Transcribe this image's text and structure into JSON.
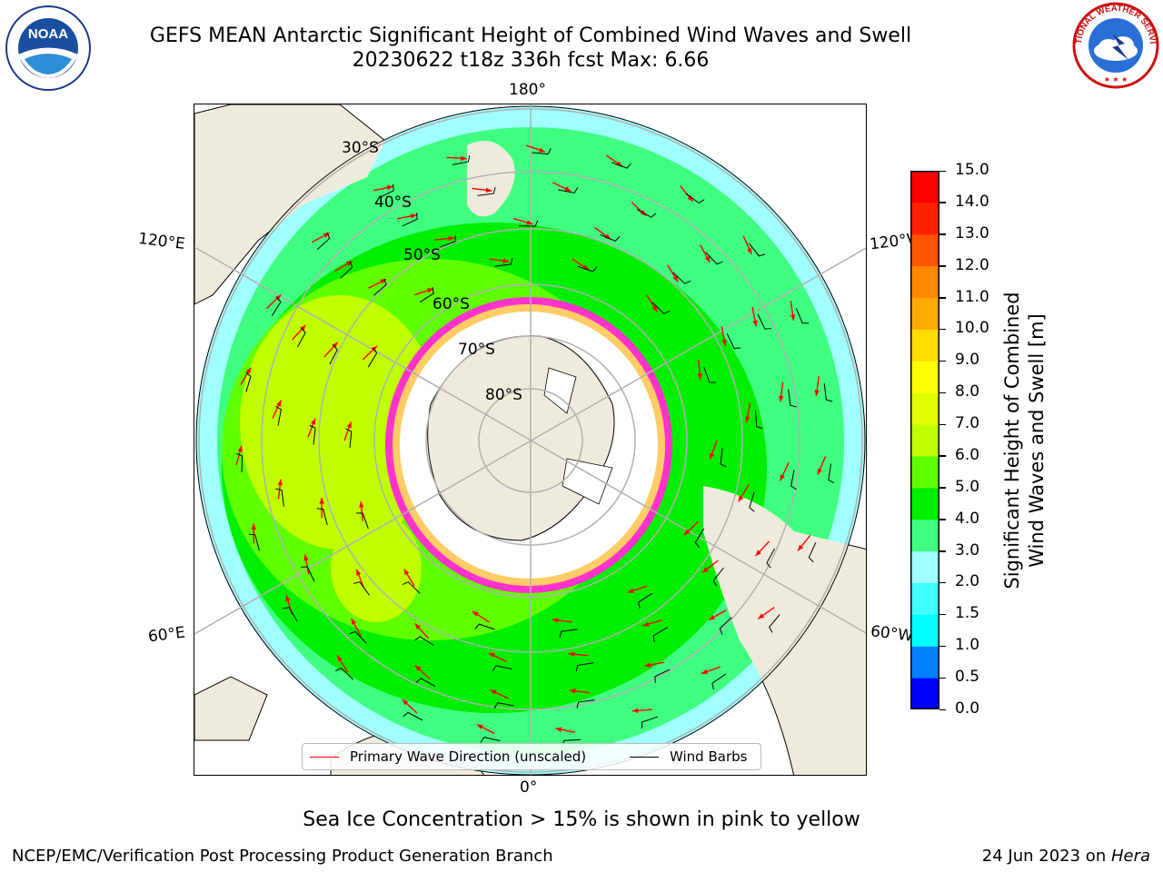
{
  "title": {
    "line1": "GEFS MEAN Antarctic Significant Height of Combined Wind Waves and Swell",
    "line2": "20230622 t18z 336h fcst   Max: 6.66"
  },
  "logos": {
    "left": {
      "name": "noaa-logo",
      "text": "NOAA"
    },
    "right": {
      "name": "national-weather-service-logo",
      "text": "NATIONAL WEATHER SERVICE"
    }
  },
  "map": {
    "projection": "south-polar-stereographic",
    "latitude_labels": [
      "30°S",
      "40°S",
      "50°S",
      "60°S",
      "70°S",
      "80°S"
    ],
    "longitude_labels": {
      "top": "180°",
      "bottom": "0°",
      "upper_left": "120°E",
      "lower_left": "60°E",
      "upper_right": "120°W",
      "lower_right": "60°W"
    },
    "colors": {
      "land": "#efebdc",
      "ice_shelf": "#ffffff",
      "sea_ice": "#ff33cc",
      "grid": "#b0b0b0",
      "wave_arrow": "#ff0000",
      "wind_barb": "#000000"
    }
  },
  "legend": {
    "primary_wave": "Primary Wave Direction (unscaled)",
    "wind_barbs": "Wind Barbs"
  },
  "colorbar": {
    "title_line1": "Significant Height of Combined",
    "title_line2": "Wind Waves and Swell [m]",
    "ticks": [
      "0.0",
      "0.5",
      "1.0",
      "1.5",
      "2.0",
      "3.0",
      "4.0",
      "5.0",
      "6.0",
      "7.0",
      "8.0",
      "9.0",
      "10.0",
      "11.0",
      "12.0",
      "13.0",
      "14.0",
      "15.0"
    ],
    "colors": [
      "#0000ff",
      "#0080ff",
      "#00ffff",
      "#40ffff",
      "#a0ffff",
      "#40ff80",
      "#00ee00",
      "#60ff00",
      "#c0ff00",
      "#e0ff00",
      "#ffff00",
      "#ffdd00",
      "#ffaa00",
      "#ff8800",
      "#ff5500",
      "#ff2200",
      "#ff0000"
    ]
  },
  "caption": "Sea Ice Concentration > 15% is shown in pink to yellow",
  "footer": {
    "left": "NCEP/EMC/Verification Post Processing Product Generation Branch",
    "date": "24 Jun 2023 on ",
    "machine": "Hera"
  }
}
